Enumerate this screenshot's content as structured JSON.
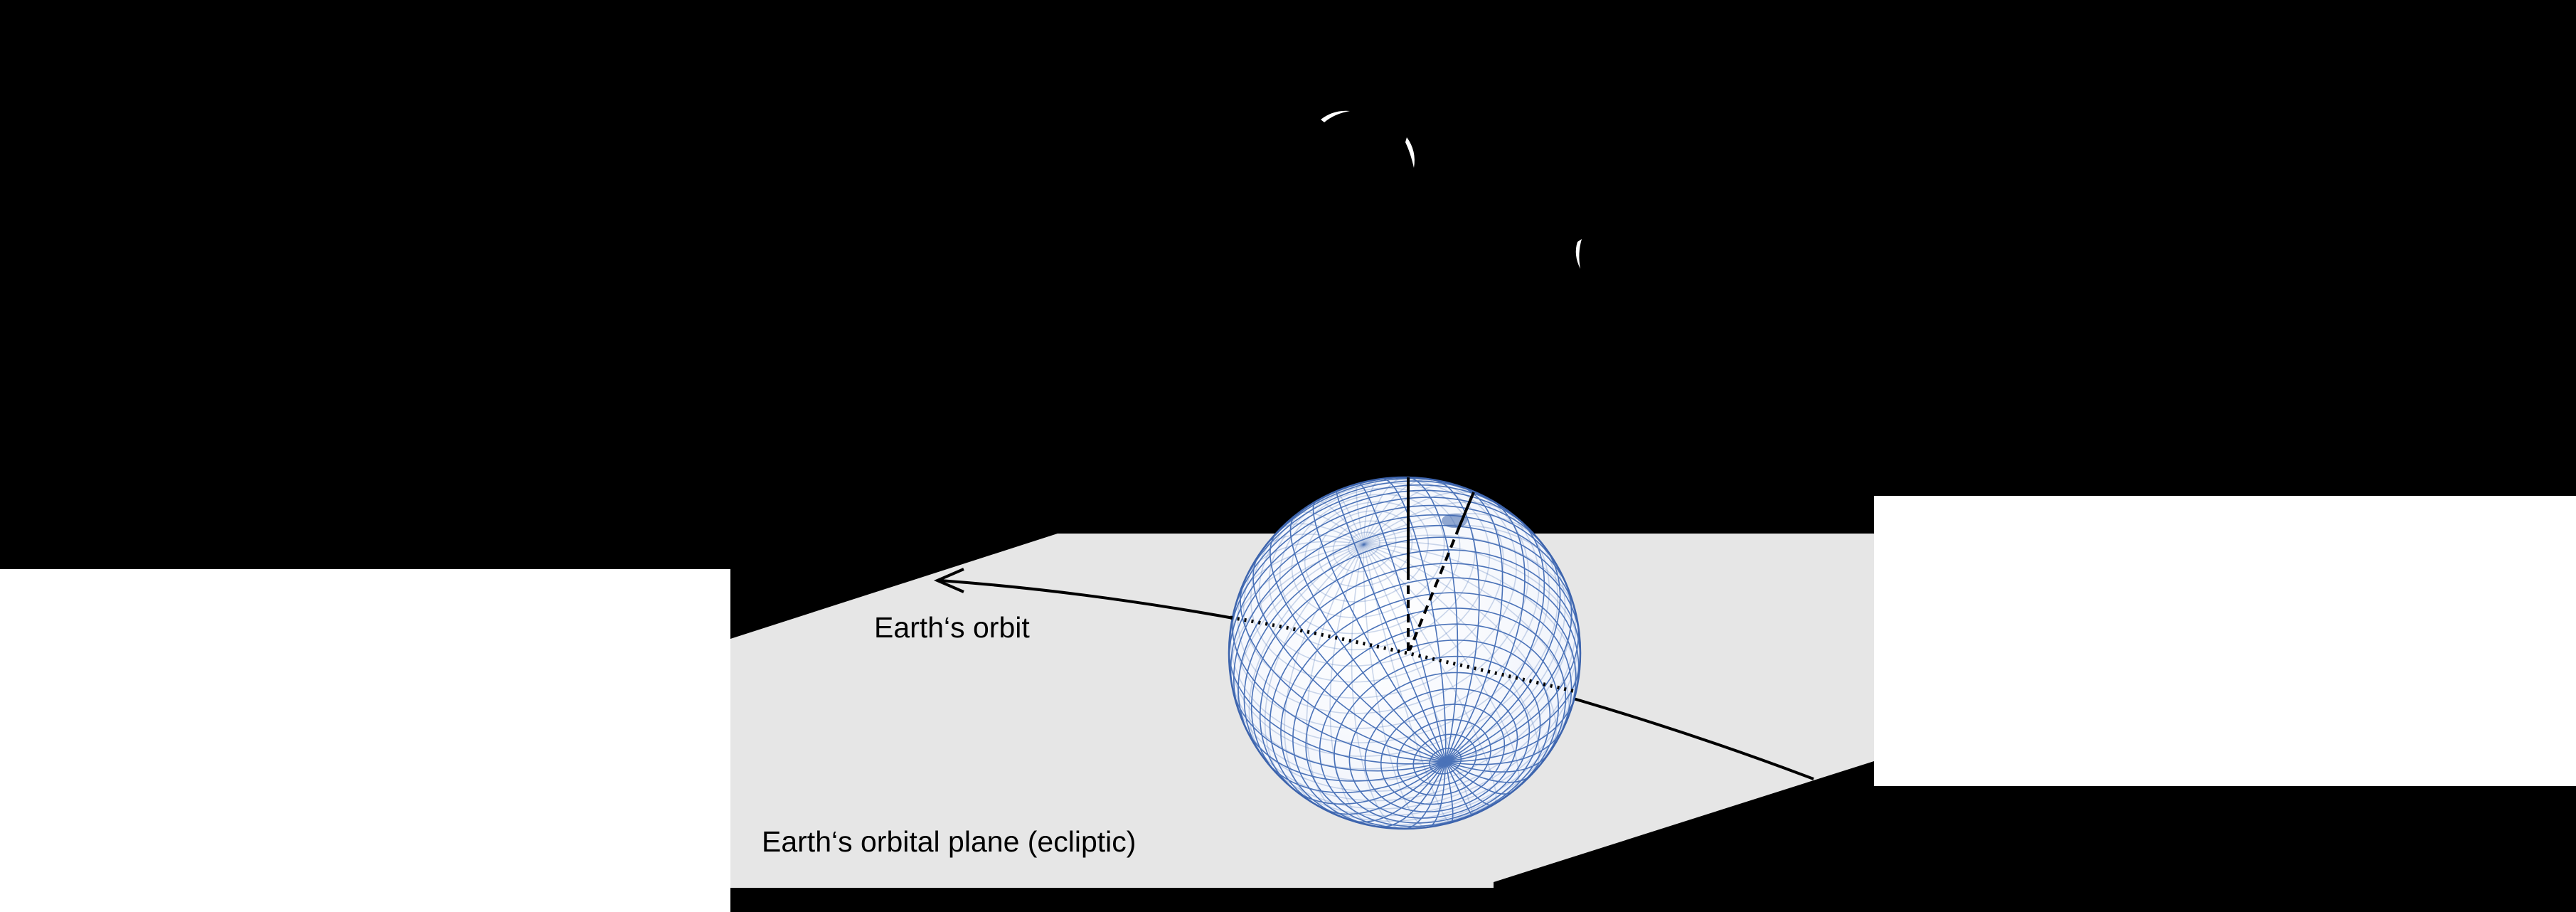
{
  "labels": {
    "orbit": "Earth‘s orbit",
    "plane": "Earth‘s orbital plane (ecliptic)"
  },
  "colors": {
    "background": "#000000",
    "plane_fill": "#e6e6e6",
    "panel_fill": "#ffffff",
    "globe_grid": "#4a72b8",
    "lines": "#000000"
  }
}
